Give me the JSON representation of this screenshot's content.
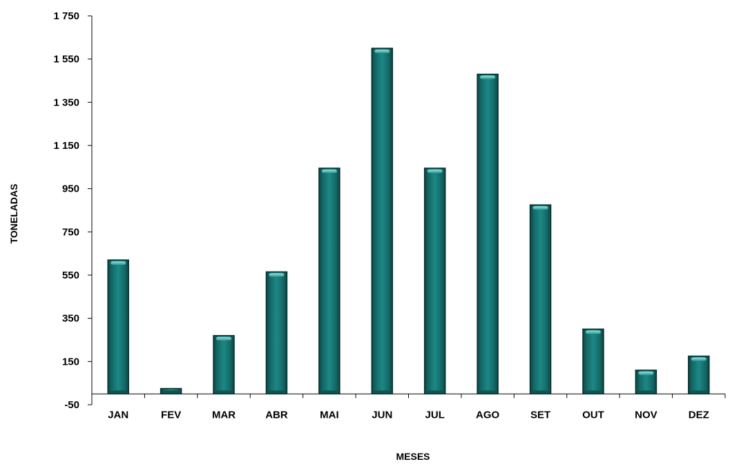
{
  "chart_data": {
    "type": "bar",
    "title": "",
    "xlabel": "MESES",
    "ylabel": "TONELADAS",
    "categories": [
      "JAN",
      "FEV",
      "MAR",
      "ABR",
      "MAI",
      "JUN",
      "JUL",
      "AGO",
      "SET",
      "OUT",
      "NOV",
      "DEZ"
    ],
    "values": [
      620,
      25,
      270,
      565,
      1045,
      1600,
      1045,
      1480,
      875,
      300,
      110,
      175
    ],
    "ylim": [
      -50,
      1750
    ],
    "yticks": [
      -50,
      150,
      350,
      550,
      750,
      950,
      1150,
      1350,
      1550,
      1750
    ],
    "ytick_labels": [
      "-50",
      "150",
      "350",
      "550",
      "750",
      "950",
      "1 150",
      "1 350",
      "1 550",
      "1 750"
    ],
    "grid": false,
    "legend": "none",
    "colors": {
      "bar": "#1a7a78",
      "bar_highlight": "#5fc9c3",
      "bar_dark": "#0b4644",
      "bar_outline": "#0a2f2e"
    }
  }
}
